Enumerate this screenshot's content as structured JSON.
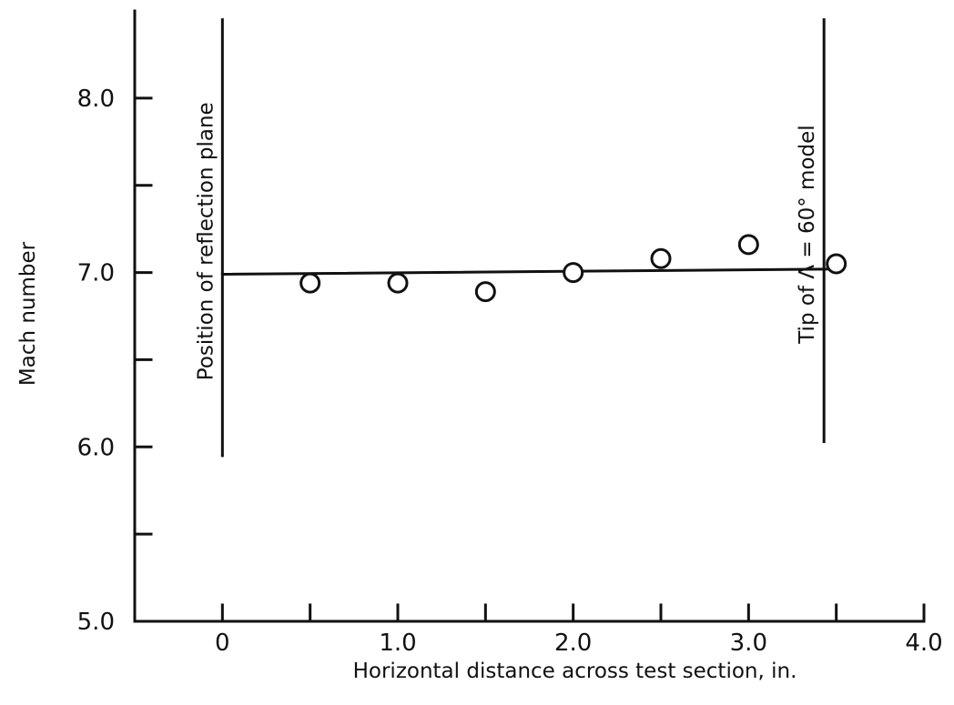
{
  "chart_data": {
    "type": "scatter",
    "title": "",
    "xlabel": "Horizontal distance across test section, in.",
    "ylabel": "Mach number",
    "xlim": [
      -0.5,
      4.0
    ],
    "ylim": [
      5.0,
      8.5
    ],
    "x_ticks": [
      0,
      0.5,
      1.0,
      1.5,
      2.0,
      2.5,
      3.0,
      3.5,
      4.0
    ],
    "x_tick_labels": [
      {
        "value": 0,
        "label": "0"
      },
      {
        "value": 1.0,
        "label": "1.0"
      },
      {
        "value": 2.0,
        "label": "2.0"
      },
      {
        "value": 3.0,
        "label": "3.0"
      },
      {
        "value": 4.0,
        "label": "4.0"
      }
    ],
    "y_ticks": [
      5.5,
      6.0,
      6.5,
      7.0,
      7.5,
      8.0
    ],
    "y_tick_labels": [
      {
        "value": 5.0,
        "label": "5.0"
      },
      {
        "value": 6.0,
        "label": "6.0"
      },
      {
        "value": 7.0,
        "label": "7.0"
      },
      {
        "value": 8.0,
        "label": "8.0"
      }
    ],
    "series": [
      {
        "marker": "open-circle",
        "x": [
          0.5,
          1.0,
          1.5,
          2.0,
          2.5,
          3.0,
          3.5
        ],
        "y": [
          6.94,
          6.94,
          6.89,
          7.0,
          7.08,
          7.16,
          7.05
        ]
      }
    ],
    "fairing_line": {
      "x": [
        0,
        3.5
      ],
      "y": [
        6.99,
        7.02
      ]
    },
    "reference_lines": [
      {
        "x": 0,
        "y_range": [
          5.95,
          8.45
        ],
        "label": "Position of reflection plane"
      },
      {
        "x": 3.43,
        "y_range": [
          6.03,
          8.45
        ],
        "label": "Tip of Λ = 60° model"
      }
    ],
    "grid": false,
    "legend": "none"
  }
}
